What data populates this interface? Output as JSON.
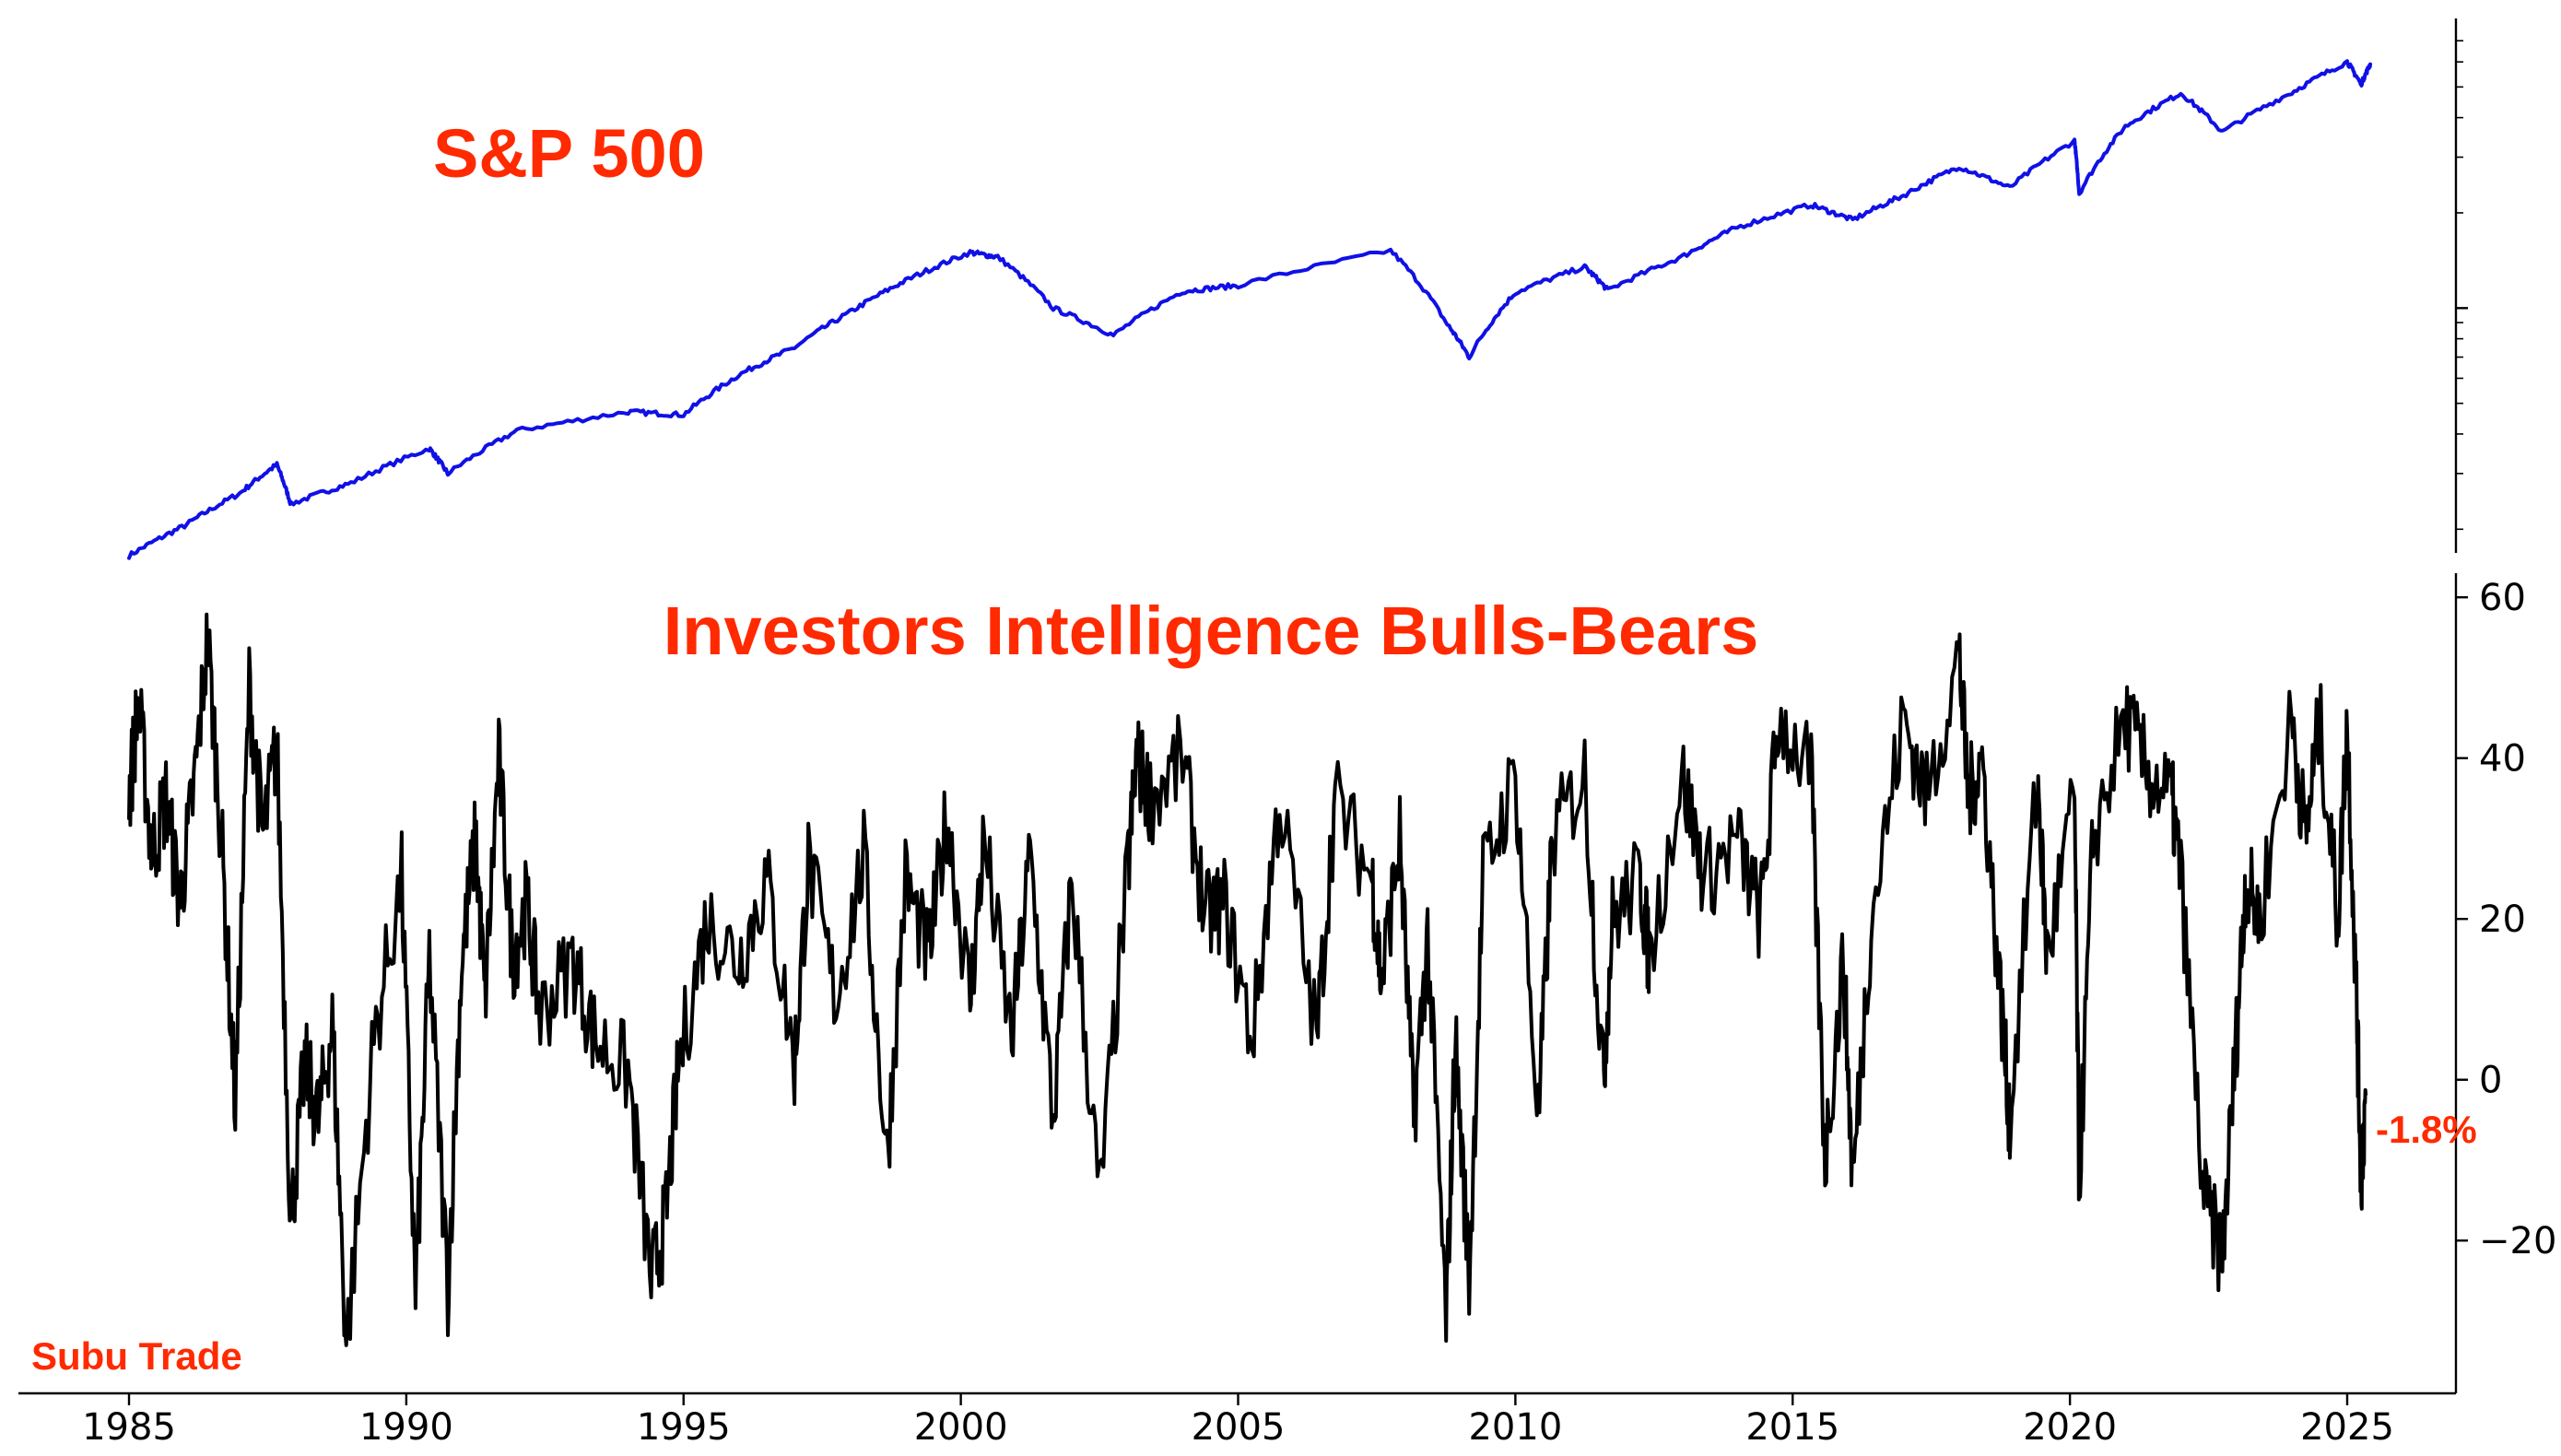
{
  "chart_data": [
    {
      "type": "line",
      "title": "S&P 500",
      "yscale": "log",
      "ylim": [
        180,
        7200
      ],
      "y_major_ticks": [
        1000
      ],
      "y_minor_ticks": [
        200,
        300,
        400,
        500,
        600,
        700,
        800,
        900,
        2000,
        3000,
        4000,
        5000,
        6000,
        7000
      ],
      "color": "#1010e6",
      "series": [
        {
          "x": [
            "1985-01",
            "1986-01",
            "1987-01",
            "1987-09",
            "1987-12",
            "1989-01",
            "1990-06",
            "1990-10",
            "1992-01",
            "1994-01",
            "1995-01",
            "1996-01",
            "1997-01",
            "1998-01",
            "1999-01",
            "2000-03",
            "2000-09",
            "2001-09",
            "2002-10",
            "2004-01",
            "2005-01",
            "2007-10",
            "2008-10",
            "2009-03",
            "2010-01",
            "2011-04",
            "2011-09",
            "2013-01",
            "2014-01",
            "2015-05",
            "2016-02",
            "2017-01",
            "2018-01",
            "2018-12",
            "2020-02",
            "2020-03",
            "2021-01",
            "2022-01",
            "2022-10",
            "2024-01",
            "2025-01",
            "2025-04",
            "2025-06"
          ],
          "y": [
            165,
            205,
            260,
            320,
            240,
            280,
            360,
            300,
            410,
            470,
            460,
            615,
            750,
            970,
            1220,
            1500,
            1450,
            1000,
            820,
            1130,
            1180,
            1520,
            900,
            700,
            1120,
            1350,
            1140,
            1450,
            1800,
            2120,
            1900,
            2270,
            2800,
            2400,
            3380,
            2300,
            3750,
            4780,
            3600,
            4800,
            6000,
            5100,
            5900
          ]
        }
      ]
    },
    {
      "type": "line",
      "title": "Investors Intelligence Bulls-Bears",
      "ylim": [
        -39,
        63
      ],
      "y_ticks": [
        60,
        40,
        20,
        0,
        -20
      ],
      "y_tick_labels": [
        "60",
        "40",
        "20",
        "0",
        "−20"
      ],
      "x_ticks": [
        1985,
        1990,
        1995,
        2000,
        2005,
        2010,
        2015,
        2020,
        2025
      ],
      "x_tick_labels": [
        "1985",
        "1990",
        "1995",
        "2000",
        "2005",
        "2010",
        "2015",
        "2020",
        "2025"
      ],
      "color": "#000000",
      "annotation": "-1.8%",
      "series": [
        {
          "x": [
            "1985-01",
            "1985-03",
            "1985-06",
            "1985-09",
            "1985-12",
            "1986-03",
            "1986-06",
            "1986-09",
            "1986-12",
            "1987-03",
            "1987-06",
            "1987-09",
            "1987-12",
            "1988-03",
            "1988-06",
            "1988-09",
            "1988-12",
            "1989-06",
            "1989-12",
            "1990-03",
            "1990-06",
            "1990-10",
            "1991-01",
            "1991-04",
            "1991-06",
            "1991-09",
            "1991-12",
            "1992-03",
            "1992-06",
            "1993-01",
            "1993-06",
            "1994-01",
            "1994-06",
            "1994-09",
            "1994-12",
            "1995-06",
            "1996-01",
            "1996-07",
            "1997-01",
            "1997-04",
            "1997-10",
            "1998-04",
            "1998-09",
            "1999-01",
            "1999-06",
            "1999-10",
            "2000-03",
            "2000-06",
            "2000-12",
            "2001-04",
            "2001-09",
            "2002-01",
            "2002-07",
            "2003-01",
            "2003-03",
            "2003-06",
            "2004-01",
            "2004-06",
            "2004-10",
            "2005-04",
            "2005-10",
            "2006-06",
            "2006-10",
            "2007-06",
            "2007-08",
            "2007-12",
            "2008-03",
            "2008-06",
            "2008-10",
            "2008-12",
            "2009-03",
            "2009-06",
            "2010-01",
            "2010-06",
            "2010-09",
            "2011-04",
            "2011-08",
            "2011-10",
            "2012-04",
            "2012-06",
            "2013-01",
            "2013-06",
            "2014-01",
            "2014-06",
            "2014-10",
            "2015-05",
            "2015-08",
            "2015-12",
            "2016-02",
            "2016-06",
            "2017-01",
            "2017-06",
            "2018-01",
            "2018-03",
            "2018-06",
            "2018-10",
            "2018-12",
            "2019-06",
            "2019-08",
            "2020-02",
            "2020-03",
            "2020-06",
            "2021-01",
            "2021-06",
            "2021-11",
            "2022-01",
            "2022-06",
            "2022-10",
            "2023-01",
            "2023-03",
            "2023-06",
            "2024-01",
            "2024-04",
            "2024-07",
            "2024-11",
            "2025-01",
            "2025-03",
            "2025-04",
            "2025-05"
          ],
          "y": [
            35,
            47,
            28,
            35,
            22,
            36,
            55,
            30,
            -3,
            49,
            30,
            42,
            -18,
            2,
            -5,
            7,
            -33,
            5,
            25,
            -27,
            15,
            -26,
            15,
            30,
            10,
            40,
            15,
            22,
            8,
            15,
            5,
            1,
            -25,
            -18,
            2,
            20,
            15,
            25,
            2,
            27,
            10,
            28,
            -10,
            25,
            15,
            33,
            10,
            30,
            5,
            28,
            -5,
            25,
            -15,
            25,
            40,
            35,
            40,
            20,
            22,
            5,
            35,
            5,
            35,
            25,
            12,
            30,
            -5,
            18,
            -30,
            5,
            -25,
            25,
            38,
            -5,
            30,
            38,
            0,
            20,
            25,
            15,
            38,
            25,
            30,
            20,
            45,
            38,
            -10,
            15,
            -13,
            20,
            45,
            35,
            53,
            35,
            40,
            10,
            -5,
            38,
            15,
            35,
            -13,
            30,
            45,
            38,
            35,
            25,
            -15,
            -22,
            5,
            25,
            20,
            45,
            30,
            45,
            20,
            45,
            10,
            -12,
            -1.8
          ]
        }
      ]
    },
    {
      "type": "text",
      "watermark": "Subu Trade"
    }
  ]
}
